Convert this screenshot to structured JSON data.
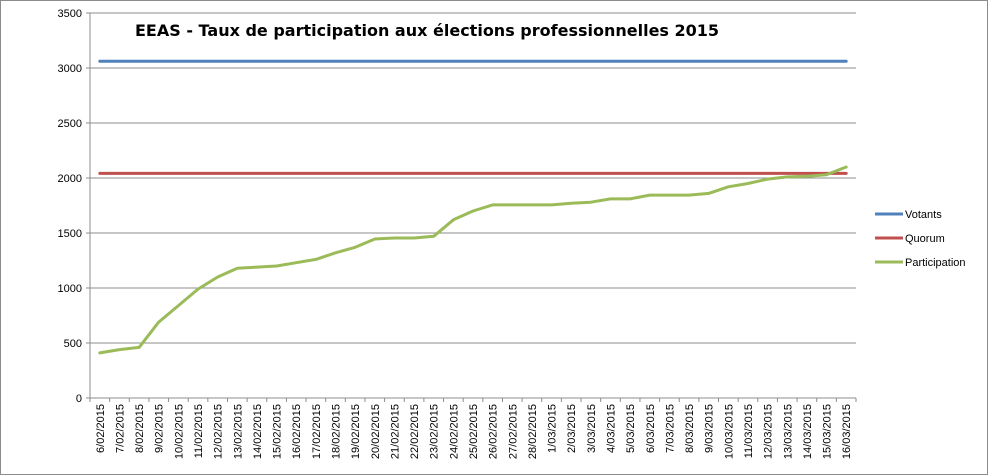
{
  "chart_data": {
    "type": "line",
    "title": "EEAS - Taux de participation  aux élections professionnelles 2015",
    "xlabel": "",
    "ylabel": "",
    "ylim": [
      0,
      3500
    ],
    "yticks": [
      0,
      500,
      1000,
      1500,
      2000,
      2500,
      3000,
      3500
    ],
    "grid": true,
    "legend_position": "right",
    "categories": [
      "6/02/2015",
      "7/02/2015",
      "8/02/2015",
      "9/02/2015",
      "10/02/2015",
      "11/02/2015",
      "12/02/2015",
      "13/02/2015",
      "14/02/2015",
      "15/02/2015",
      "16/02/2015",
      "17/02/2015",
      "18/02/2015",
      "19/02/2015",
      "20/02/2015",
      "21/02/2015",
      "22/02/2015",
      "23/02/2015",
      "24/02/2015",
      "25/02/2015",
      "26/02/2015",
      "27/02/2015",
      "28/02/2015",
      "1/03/2015",
      "2/03/2015",
      "3/03/2015",
      "4/03/2015",
      "5/03/2015",
      "6/03/2015",
      "7/03/2015",
      "8/03/2015",
      "9/03/2015",
      "10/03/2015",
      "11/03/2015",
      "12/03/2015",
      "13/03/2015",
      "14/03/2015",
      "15/03/2015",
      "16/03/2015"
    ],
    "series": [
      {
        "name": "Votants",
        "color": "#4f81bd",
        "values": [
          3062,
          3062,
          3062,
          3062,
          3062,
          3062,
          3062,
          3062,
          3062,
          3062,
          3062,
          3062,
          3062,
          3062,
          3062,
          3062,
          3062,
          3062,
          3062,
          3062,
          3062,
          3062,
          3062,
          3062,
          3062,
          3062,
          3062,
          3062,
          3062,
          3062,
          3062,
          3062,
          3062,
          3062,
          3062,
          3062,
          3062,
          3062,
          3062
        ]
      },
      {
        "name": "Quorum",
        "color": "#c0504d",
        "values": [
          2042,
          2042,
          2042,
          2042,
          2042,
          2042,
          2042,
          2042,
          2042,
          2042,
          2042,
          2042,
          2042,
          2042,
          2042,
          2042,
          2042,
          2042,
          2042,
          2042,
          2042,
          2042,
          2042,
          2042,
          2042,
          2042,
          2042,
          2042,
          2042,
          2042,
          2042,
          2042,
          2042,
          2042,
          2042,
          2042,
          2042,
          2042,
          2042
        ]
      },
      {
        "name": "Participation",
        "color": "#9bbb59",
        "values": [
          410,
          440,
          460,
          690,
          840,
          990,
          1100,
          1180,
          1190,
          1200,
          1230,
          1260,
          1320,
          1370,
          1445,
          1455,
          1455,
          1470,
          1620,
          1700,
          1755,
          1755,
          1755,
          1755,
          1770,
          1780,
          1810,
          1810,
          1845,
          1845,
          1845,
          1860,
          1920,
          1950,
          1990,
          2010,
          2015,
          2030,
          2100
        ]
      }
    ]
  }
}
